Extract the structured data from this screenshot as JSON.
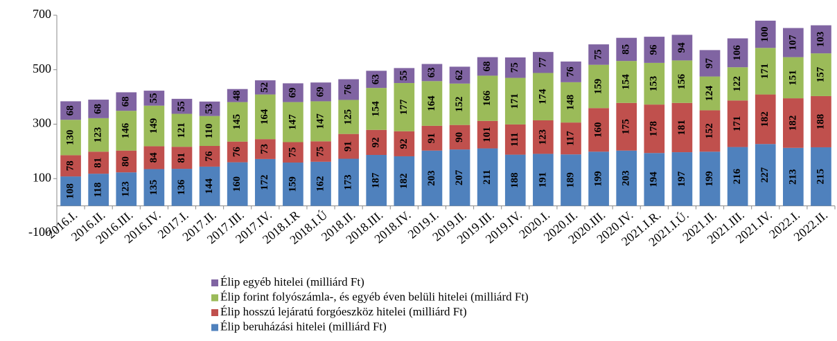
{
  "chart_data": {
    "type": "stacked_bar",
    "categories": [
      "2016.I.",
      "2016.II.",
      "2016.III.",
      "2016.IV.",
      "2017.I.",
      "2017.II.",
      "2017.III.",
      "2017.IV.",
      "2018.I.R",
      "2018.I.Ú",
      "2018.II.",
      "2018.III.",
      "2018.IV.",
      "2019.I.",
      "2019.II.",
      "2019.III.",
      "2019.IV.",
      "2020.I.",
      "2020.II.",
      "2020.III.",
      "2020.IV.",
      "2021.I.R.",
      "2021.I.Ú.",
      "2021.II.",
      "2021.III.",
      "2021.IV.",
      "2022.I.",
      "2022.II."
    ],
    "series": [
      {
        "name": "Élip beruházási hitelei (milliárd Ft)",
        "color": "#4f81bd",
        "values": [
          108,
          118,
          123,
          135,
          136,
          144,
          160,
          172,
          159,
          162,
          173,
          187,
          182,
          203,
          207,
          211,
          188,
          191,
          189,
          199,
          203,
          194,
          197,
          199,
          216,
          227,
          213,
          215
        ]
      },
      {
        "name": "Élip hosszú lejáratú forgóeszköz hitelei (milliárd Ft)",
        "color": "#c0504d",
        "values": [
          78,
          81,
          80,
          84,
          81,
          76,
          76,
          73,
          75,
          75,
          91,
          92,
          92,
          91,
          90,
          101,
          111,
          123,
          117,
          160,
          175,
          178,
          181,
          152,
          171,
          182,
          182,
          188
        ]
      },
      {
        "name": "Élip forint folyószámla-, és egyéb éven belüli hitelei (milliárd Ft)",
        "color": "#9bbb59",
        "values": [
          130,
          123,
          146,
          149,
          121,
          110,
          145,
          164,
          147,
          147,
          125,
          154,
          177,
          164,
          152,
          166,
          171,
          174,
          148,
          159,
          154,
          153,
          156,
          124,
          122,
          171,
          151,
          157
        ]
      },
      {
        "name": "Élip egyéb hitelei (milliárd Ft)",
        "color": "#8064a2",
        "values": [
          68,
          68,
          68,
          55,
          55,
          53,
          48,
          52,
          69,
          69,
          76,
          63,
          55,
          63,
          62,
          68,
          75,
          77,
          76,
          75,
          85,
          96,
          94,
          97,
          106,
          100,
          107,
          103
        ]
      }
    ],
    "ylim": [
      -100,
      700
    ],
    "yticks": [
      -100,
      100,
      300,
      500,
      700
    ]
  }
}
